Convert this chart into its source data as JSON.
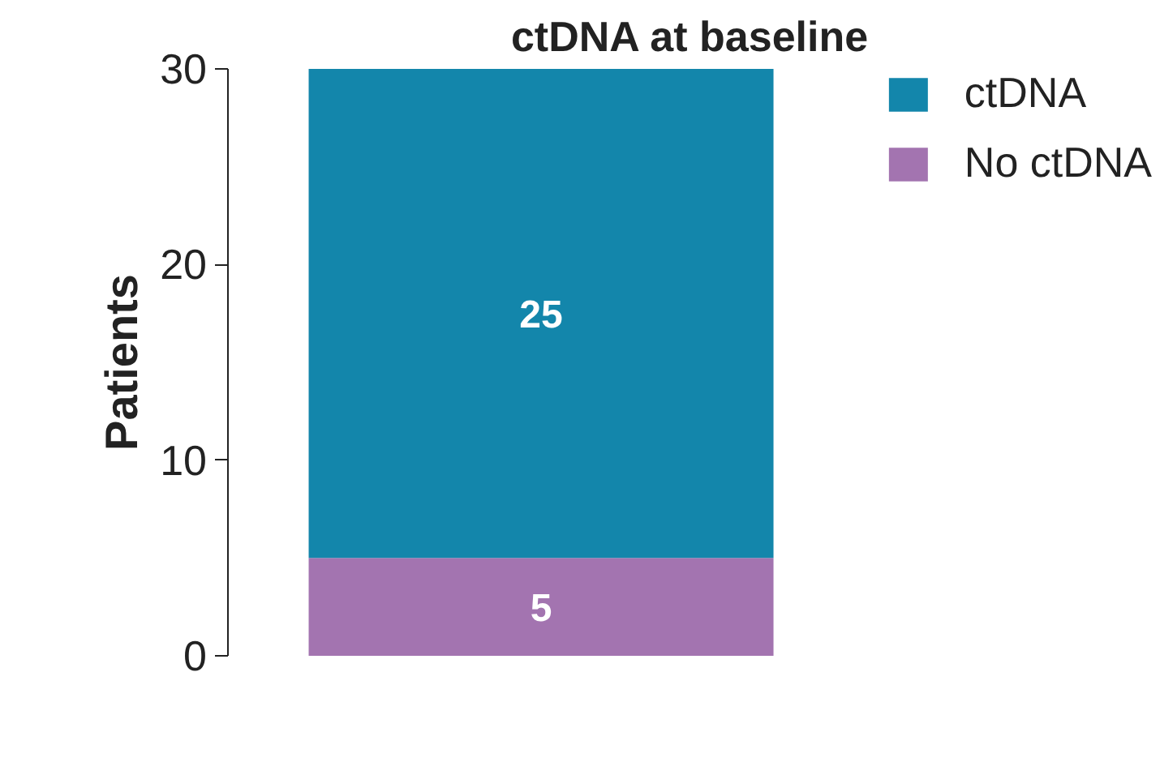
{
  "chart_data": {
    "type": "bar",
    "title": "ctDNA at baseline",
    "ylabel": "Patients",
    "categories": [
      null
    ],
    "stacked": true,
    "series": [
      {
        "name": "No ctDNA",
        "color": "#a374b0",
        "values": [
          5
        ]
      },
      {
        "name": "ctDNA",
        "color": "#1386ab",
        "values": [
          25
        ]
      }
    ],
    "ylim": [
      0,
      30
    ],
    "yticks": [
      0,
      10,
      20,
      30
    ],
    "grid": false,
    "legend": "top right",
    "data_labels": true,
    "tick_labels": "y"
  }
}
